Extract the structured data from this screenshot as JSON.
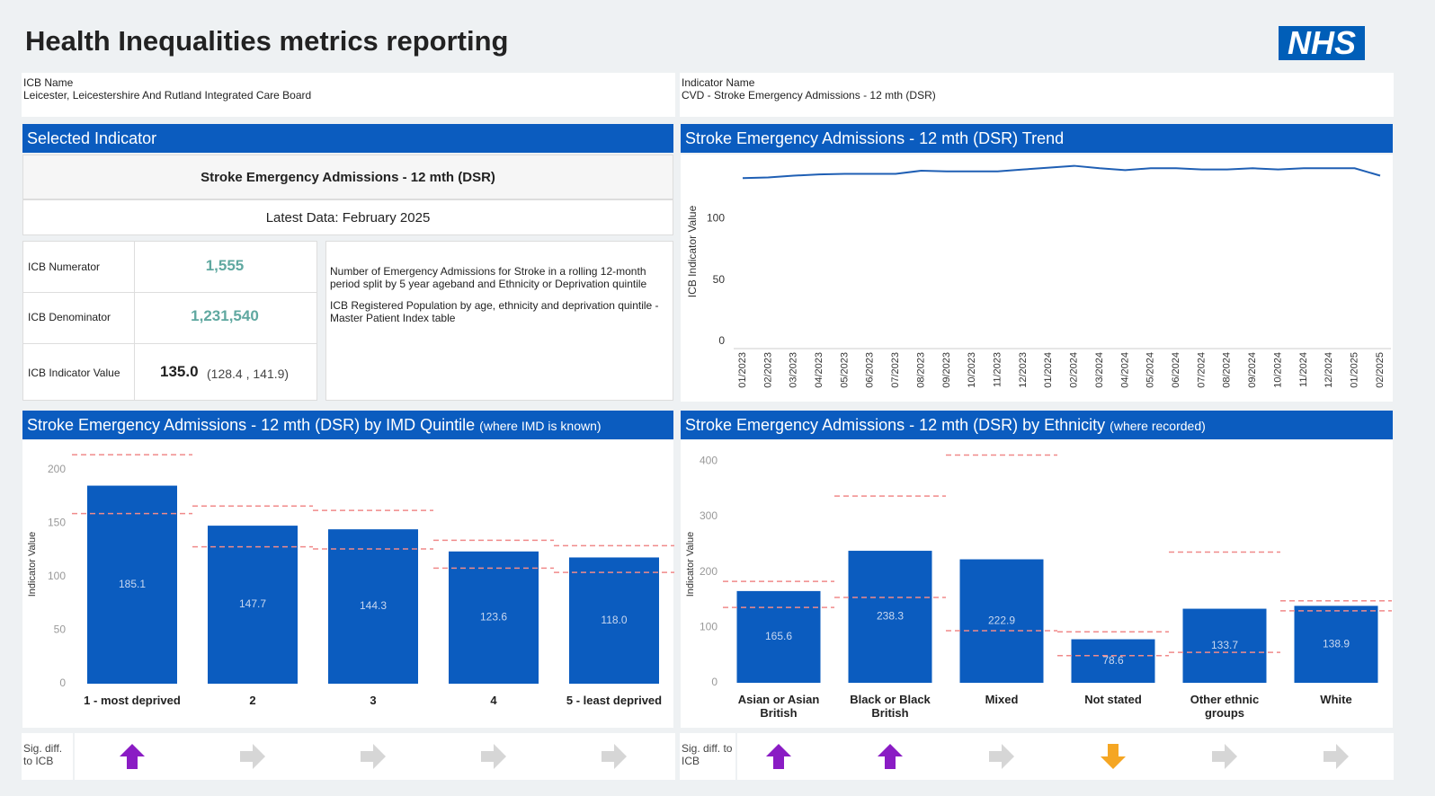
{
  "header": {
    "title": "Health Inequalities metrics reporting",
    "logo": "NHS"
  },
  "icb": {
    "label": "ICB Name",
    "value": "Leicester, Leicestershire And Rutland Integrated Care Board"
  },
  "indicator": {
    "label": "Indicator Name",
    "value": "CVD - Stroke Emergency Admissions - 12 mth (DSR)"
  },
  "selected": {
    "heading": "Selected Indicator",
    "name": "Stroke Emergency Admissions - 12 mth (DSR)",
    "latest": "Latest Data: February 2025",
    "rows": [
      {
        "label": "ICB Numerator",
        "value": "1,555"
      },
      {
        "label": "ICB Denominator",
        "value": "1,231,540"
      },
      {
        "label": "ICB Indicator Value",
        "value": "135.0",
        "ci": "(128.4 , 141.9)"
      }
    ],
    "notes": [
      "Number of Emergency Admissions for Stroke in a rolling 12-month period  split by 5 year ageband and Ethnicity or Deprivation quintile",
      "ICB Registered Population by age, ethnicity and deprivation quintile - Master Patient Index table"
    ]
  },
  "sig_label": "Sig. diff. to ICB",
  "chart_data": [
    {
      "type": "line",
      "title": "Stroke Emergency Admissions - 12 mth (DSR) Trend",
      "y_label": "ICB Indicator Value",
      "categories": [
        "01/2023",
        "02/2023",
        "03/2023",
        "04/2023",
        "05/2023",
        "06/2023",
        "07/2023",
        "08/2023",
        "09/2023",
        "10/2023",
        "11/2023",
        "12/2023",
        "01/2024",
        "02/2024",
        "03/2024",
        "04/2024",
        "05/2024",
        "06/2024",
        "07/2024",
        "08/2024",
        "09/2024",
        "10/2024",
        "11/2024",
        "12/2024",
        "01/2025",
        "02/2025"
      ],
      "values": [
        133,
        133.5,
        135,
        136,
        136.5,
        136.5,
        136.5,
        139,
        138.5,
        138.5,
        138.5,
        140,
        141.5,
        143,
        141,
        139.5,
        141,
        141,
        140,
        140,
        141,
        140,
        141,
        141,
        141,
        135
      ],
      "color": "#1f5fb4",
      "ylim": [
        0,
        150
      ],
      "yticks": [
        0,
        50,
        100
      ]
    },
    {
      "type": "bar",
      "title": "Stroke Emergency Admissions - 12 mth (DSR) by IMD Quintile",
      "subtitle": "(where IMD is known)",
      "y_label": "Indicator Value",
      "categories": [
        "1 - most deprived",
        "2",
        "3",
        "4",
        "5 - least deprived"
      ],
      "values": [
        185.1,
        147.7,
        144.3,
        123.6,
        118.0
      ],
      "value_labels": [
        "185.1",
        "147.7",
        "144.3",
        "123.6",
        "118.0"
      ],
      "ci_upper": [
        214,
        166,
        162,
        134,
        129
      ],
      "ci_lower": [
        159,
        128,
        126,
        108,
        104
      ],
      "color": "#0b5cbf",
      "ci_color": "#f08a8a",
      "ylim": [
        0,
        220
      ],
      "yticks": [
        0,
        50,
        100,
        150,
        200
      ],
      "sig_diff": [
        "up",
        "right",
        "right",
        "right",
        "right"
      ]
    },
    {
      "type": "bar",
      "title": "Stroke Emergency Admissions - 12 mth (DSR) by Ethnicity",
      "subtitle": "(where recorded)",
      "y_label": "Indicator Value",
      "categories": [
        "Asian or Asian British",
        "Black or Black British",
        "Mixed",
        "Not stated",
        "Other ethnic groups",
        "White"
      ],
      "values": [
        165.6,
        238.3,
        222.9,
        78.6,
        133.7,
        138.9
      ],
      "value_labels": [
        "165.6",
        "238.3",
        "222.9",
        "78.6",
        "133.7",
        "138.9"
      ],
      "ci_upper": [
        183,
        337,
        411,
        92,
        236,
        148
      ],
      "ci_lower": [
        136,
        154,
        94,
        49,
        55,
        130
      ],
      "color": "#0b5cbf",
      "ci_color": "#f08a8a",
      "ylim": [
        0,
        420
      ],
      "yticks": [
        0,
        100,
        200,
        300,
        400
      ],
      "sig_diff": [
        "up",
        "up",
        "right",
        "down",
        "right",
        "right"
      ]
    }
  ]
}
